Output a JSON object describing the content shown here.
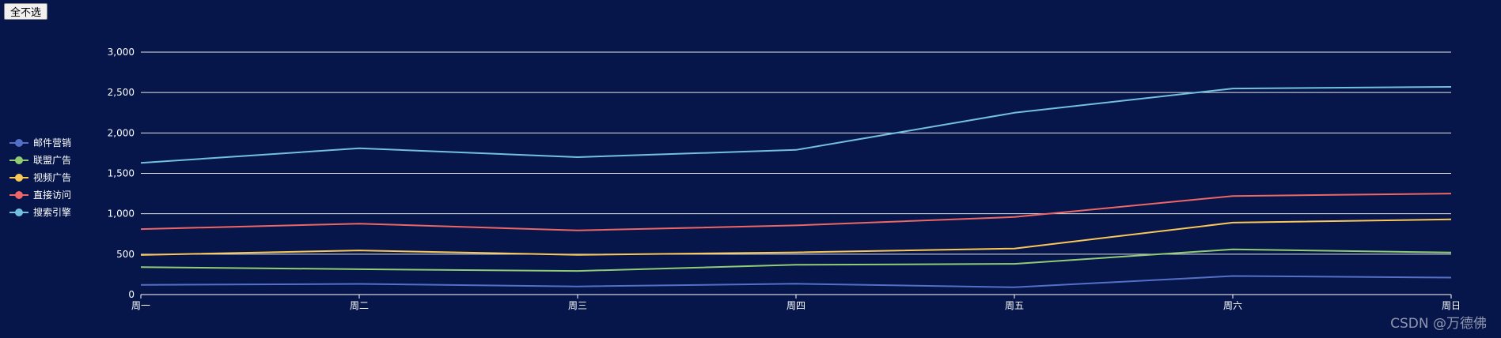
{
  "controls": {
    "toggle_label": "全不选"
  },
  "watermark": "CSDN @万德佛",
  "chart_data": {
    "type": "line",
    "categories": [
      "周一",
      "周二",
      "周三",
      "周四",
      "周五",
      "周六",
      "周日"
    ],
    "ylim": [
      0,
      3000
    ],
    "yticks": [
      0,
      500,
      1000,
      1500,
      2000,
      2500,
      3000
    ],
    "ytick_labels": [
      "0",
      "500",
      "1,000",
      "1,500",
      "2,000",
      "2,500",
      "3,000"
    ],
    "grid": true,
    "legend_position": "left",
    "series": [
      {
        "name": "邮件营销",
        "color": "#5470c6",
        "values": [
          120,
          132,
          101,
          134,
          90,
          230,
          210
        ]
      },
      {
        "name": "联盟广告",
        "color": "#91cc75",
        "values": [
          340,
          314,
          292,
          368,
          380,
          560,
          520
        ]
      },
      {
        "name": "视频广告",
        "color": "#fac858",
        "values": [
          490,
          546,
          492,
          522,
          570,
          890,
          930
        ]
      },
      {
        "name": "直接访问",
        "color": "#ee6666",
        "values": [
          810,
          878,
          793,
          856,
          960,
          1220,
          1250
        ]
      },
      {
        "name": "搜索引擎",
        "color": "#73c0de",
        "values": [
          1630,
          1810,
          1700,
          1790,
          2250,
          2550,
          2570
        ]
      }
    ]
  }
}
